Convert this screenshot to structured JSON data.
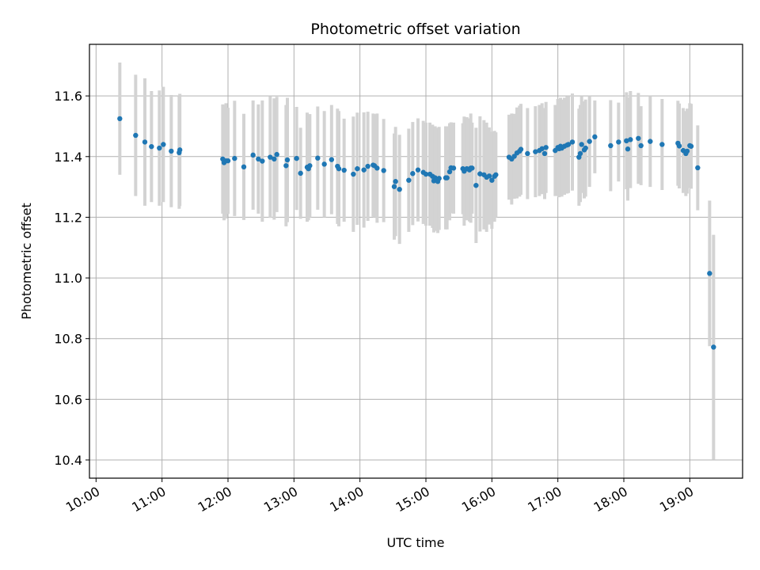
{
  "chart_data": {
    "type": "scatter",
    "title": "Photometric offset variation",
    "xlabel": "UTC time",
    "ylabel": "Photometric offset",
    "x_unit": "hours UTC",
    "xlim": [
      9.9,
      19.8
    ],
    "ylim": [
      10.34,
      11.77
    ],
    "x_ticks": [
      10,
      11,
      12,
      13,
      14,
      15,
      16,
      17,
      18,
      19
    ],
    "x_tick_labels": [
      "10:00",
      "11:00",
      "12:00",
      "13:00",
      "14:00",
      "15:00",
      "16:00",
      "17:00",
      "18:00",
      "19:00"
    ],
    "y_ticks": [
      10.4,
      10.6,
      10.8,
      11.0,
      11.2,
      11.4,
      11.6
    ],
    "y_tick_labels": [
      "10.4",
      "10.6",
      "10.8",
      "11.0",
      "11.2",
      "11.4",
      "11.6"
    ],
    "grid": true,
    "colors": {
      "point": "#1f77b4",
      "errorbar": "#d3d3d3",
      "grid": "#b0b0b0"
    },
    "series": [
      {
        "x": [
          10.36,
          10.6,
          10.74,
          10.84,
          10.96,
          11.02,
          11.14,
          11.26,
          11.27,
          11.92,
          11.94,
          11.97,
          12.0,
          12.1,
          12.24,
          12.38,
          12.46,
          12.52,
          12.64,
          12.7,
          12.74,
          12.88,
          12.9,
          13.04,
          13.1,
          13.2,
          13.22,
          13.24,
          13.36,
          13.46,
          13.57,
          13.66,
          13.68,
          13.76,
          13.9,
          13.96,
          14.06,
          14.12,
          14.2,
          14.22,
          14.26,
          14.36,
          14.52,
          14.54,
          14.6,
          14.74,
          14.8,
          14.88,
          14.96,
          15.0,
          15.06,
          15.1,
          15.12,
          15.14,
          15.16,
          15.18,
          15.2,
          15.3,
          15.32,
          15.36,
          15.38,
          15.42,
          15.56,
          15.58,
          15.62,
          15.66,
          15.68,
          15.7,
          15.76,
          15.82,
          15.88,
          15.92,
          15.96,
          16.0,
          16.04,
          16.06,
          16.26,
          16.3,
          16.34,
          16.38,
          16.42,
          16.44,
          16.54,
          16.66,
          16.72,
          16.76,
          16.8,
          16.82,
          16.96,
          17.0,
          17.02,
          17.04,
          17.06,
          17.1,
          17.14,
          17.16,
          17.22,
          17.32,
          17.34,
          17.36,
          17.4,
          17.42,
          17.48,
          17.56,
          17.8,
          17.92,
          18.04,
          18.06,
          18.1,
          18.22,
          18.26,
          18.4,
          18.58,
          18.82,
          18.84,
          18.9,
          18.94,
          18.96,
          19.0,
          19.02,
          19.12,
          19.3,
          19.36
        ],
        "y": [
          11.525,
          11.47,
          11.448,
          11.433,
          11.428,
          11.44,
          11.418,
          11.413,
          11.422,
          11.392,
          11.38,
          11.386,
          11.386,
          11.394,
          11.366,
          11.405,
          11.392,
          11.385,
          11.398,
          11.392,
          11.407,
          11.37,
          11.389,
          11.394,
          11.345,
          11.365,
          11.36,
          11.37,
          11.395,
          11.375,
          11.39,
          11.368,
          11.36,
          11.355,
          11.342,
          11.36,
          11.356,
          11.368,
          11.372,
          11.37,
          11.362,
          11.354,
          11.301,
          11.318,
          11.292,
          11.322,
          11.344,
          11.356,
          11.348,
          11.342,
          11.342,
          11.335,
          11.32,
          11.33,
          11.325,
          11.318,
          11.328,
          11.33,
          11.33,
          11.35,
          11.363,
          11.362,
          11.36,
          11.352,
          11.36,
          11.356,
          11.362,
          11.362,
          11.305,
          11.343,
          11.34,
          11.332,
          11.336,
          11.322,
          11.335,
          11.34,
          11.398,
          11.392,
          11.401,
          11.412,
          11.418,
          11.424,
          11.41,
          11.416,
          11.42,
          11.426,
          11.41,
          11.43,
          11.42,
          11.43,
          11.426,
          11.434,
          11.428,
          11.434,
          11.438,
          11.44,
          11.448,
          11.398,
          11.41,
          11.44,
          11.422,
          11.428,
          11.45,
          11.465,
          11.436,
          11.448,
          11.452,
          11.425,
          11.456,
          11.46,
          11.436,
          11.45,
          11.44,
          11.444,
          11.435,
          11.42,
          11.41,
          11.418,
          11.436,
          11.434,
          11.363,
          11.015,
          10.772
        ],
        "yerr": [
          0.185,
          0.2,
          0.21,
          0.183,
          0.19,
          0.19,
          0.185,
          0.185,
          0.185,
          0.18,
          0.19,
          0.19,
          0.175,
          0.19,
          0.175,
          0.18,
          0.18,
          0.2,
          0.2,
          0.2,
          0.19,
          0.2,
          0.205,
          0.17,
          0.15,
          0.18,
          0.17,
          0.17,
          0.17,
          0.175,
          0.18,
          0.19,
          0.19,
          0.17,
          0.19,
          0.185,
          0.19,
          0.18,
          0.17,
          0.17,
          0.18,
          0.17,
          0.175,
          0.18,
          0.18,
          0.17,
          0.17,
          0.17,
          0.17,
          0.17,
          0.17,
          0.17,
          0.17,
          0.17,
          0.17,
          0.17,
          0.17,
          0.17,
          0.17,
          0.16,
          0.15,
          0.15,
          0.15,
          0.18,
          0.17,
          0.17,
          0.18,
          0.15,
          0.19,
          0.19,
          0.18,
          0.18,
          0.16,
          0.16,
          0.15,
          0.14,
          0.14,
          0.15,
          0.14,
          0.15,
          0.15,
          0.15,
          0.15,
          0.15,
          0.15,
          0.15,
          0.15,
          0.15,
          0.15,
          0.16,
          0.16,
          0.16,
          0.16,
          0.16,
          0.16,
          0.16,
          0.16,
          0.16,
          0.16,
          0.16,
          0.16,
          0.16,
          0.15,
          0.12,
          0.15,
          0.13,
          0.16,
          0.17,
          0.16,
          0.15,
          0.13,
          0.15,
          0.15,
          0.14,
          0.14,
          0.14,
          0.14,
          0.14,
          0.14,
          0.14,
          0.14,
          0.24,
          0.37
        ]
      }
    ]
  }
}
